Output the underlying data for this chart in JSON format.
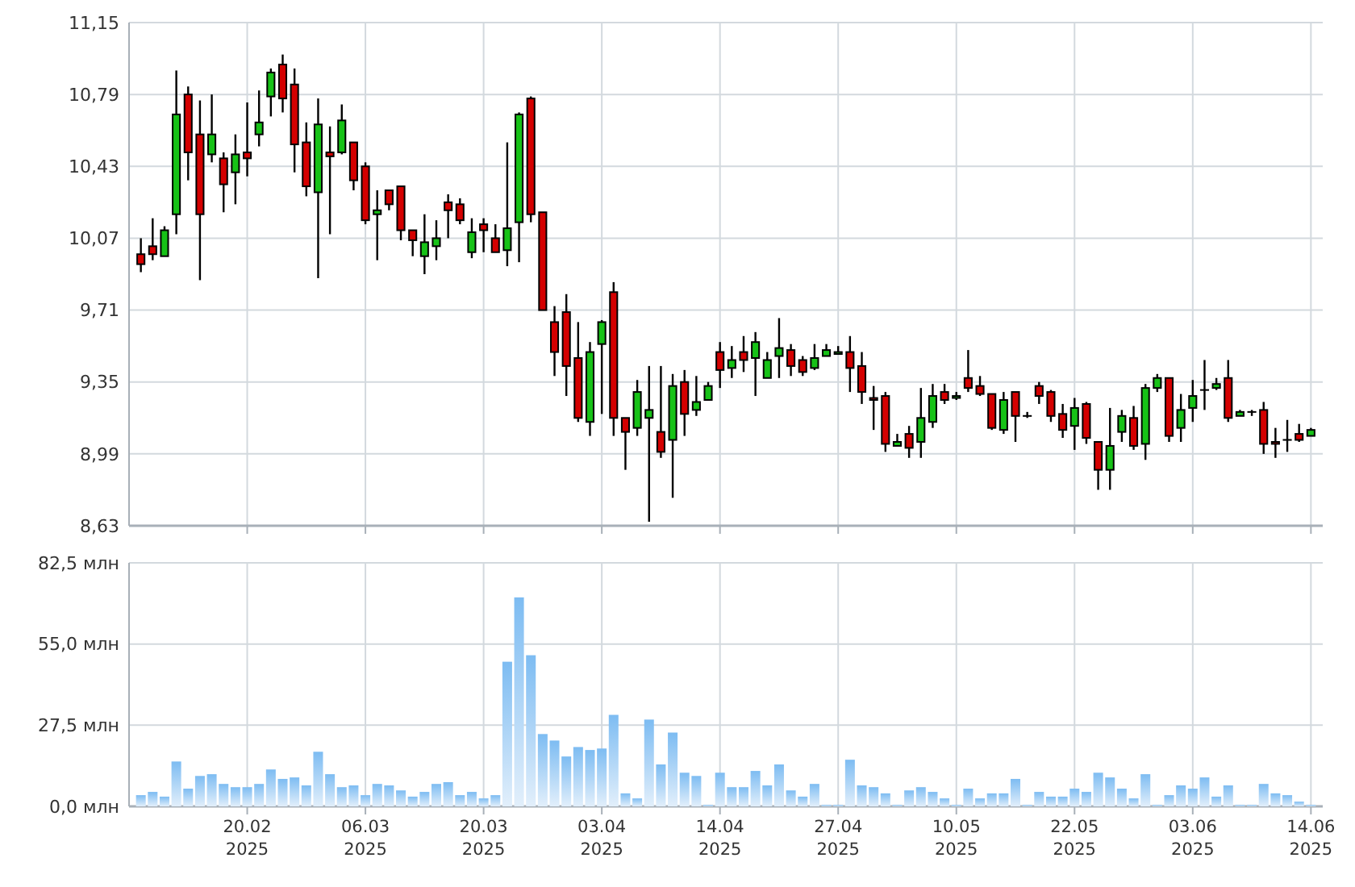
{
  "chart_data": [
    {
      "type": "candlestick",
      "categories": [
        null,
        null,
        null,
        null,
        null,
        null,
        null,
        null,
        null,
        null,
        null,
        null,
        null,
        null,
        null,
        null,
        null,
        null,
        null,
        null,
        null,
        null,
        null,
        null,
        null,
        null,
        null,
        null,
        null,
        null,
        null,
        null,
        null,
        null,
        null,
        null,
        null,
        null,
        null,
        null,
        null,
        null,
        null,
        null,
        null,
        null,
        null,
        null,
        null,
        null,
        null,
        null,
        null,
        null,
        null,
        null,
        null,
        null,
        null,
        null,
        null,
        null,
        null,
        null,
        null,
        null,
        null,
        null,
        null,
        null,
        null,
        null,
        null,
        null,
        null,
        null,
        null,
        null,
        null,
        null,
        null,
        null,
        null,
        null,
        null,
        null,
        null,
        null,
        null,
        null,
        null,
        null,
        null,
        null,
        null,
        null,
        null,
        null,
        null,
        null
      ],
      "ohlc": [
        [
          9.99,
          10.07,
          9.9,
          9.94
        ],
        [
          10.03,
          10.17,
          9.96,
          9.99
        ],
        [
          9.98,
          10.13,
          9.98,
          10.11
        ],
        [
          10.19,
          10.91,
          10.09,
          10.69
        ],
        [
          10.79,
          10.83,
          10.36,
          10.5
        ],
        [
          10.59,
          10.76,
          9.86,
          10.19
        ],
        [
          10.49,
          10.79,
          10.45,
          10.59
        ],
        [
          10.47,
          10.5,
          10.2,
          10.34
        ],
        [
          10.4,
          10.59,
          10.24,
          10.49
        ],
        [
          10.5,
          10.75,
          10.38,
          10.47
        ],
        [
          10.59,
          10.81,
          10.53,
          10.65
        ],
        [
          10.78,
          10.92,
          10.68,
          10.9
        ],
        [
          10.94,
          10.99,
          10.7,
          10.77
        ],
        [
          10.84,
          10.92,
          10.4,
          10.54
        ],
        [
          10.55,
          10.65,
          10.28,
          10.33
        ],
        [
          10.3,
          10.77,
          9.87,
          10.64
        ],
        [
          10.5,
          10.63,
          10.09,
          10.48
        ],
        [
          10.5,
          10.74,
          10.49,
          10.66
        ],
        [
          10.55,
          10.55,
          10.31,
          10.36
        ],
        [
          10.43,
          10.45,
          10.14,
          10.16
        ],
        [
          10.19,
          10.31,
          9.96,
          10.21
        ],
        [
          10.31,
          10.31,
          10.21,
          10.24
        ],
        [
          10.33,
          10.33,
          10.06,
          10.11
        ],
        [
          10.11,
          10.11,
          9.98,
          10.06
        ],
        [
          9.98,
          10.19,
          9.89,
          10.05
        ],
        [
          10.03,
          10.16,
          9.96,
          10.07
        ],
        [
          10.25,
          10.29,
          10.07,
          10.21
        ],
        [
          10.24,
          10.27,
          10.14,
          10.16
        ],
        [
          10.0,
          10.17,
          9.97,
          10.1
        ],
        [
          10.14,
          10.17,
          10.0,
          10.11
        ],
        [
          10.07,
          10.14,
          10.0,
          10.0
        ],
        [
          10.01,
          10.55,
          9.93,
          10.12
        ],
        [
          10.15,
          10.7,
          9.95,
          10.69
        ],
        [
          10.77,
          10.78,
          10.15,
          10.19
        ],
        [
          10.2,
          10.2,
          9.71,
          9.71
        ],
        [
          9.65,
          9.73,
          9.38,
          9.5
        ],
        [
          9.7,
          9.79,
          9.28,
          9.43
        ],
        [
          9.47,
          9.65,
          9.15,
          9.17
        ],
        [
          9.15,
          9.55,
          9.08,
          9.5
        ],
        [
          9.54,
          9.66,
          9.19,
          9.65
        ],
        [
          9.8,
          9.85,
          9.08,
          9.17
        ],
        [
          9.17,
          9.17,
          8.91,
          9.1
        ],
        [
          9.12,
          9.36,
          9.08,
          9.3
        ],
        [
          9.17,
          9.43,
          8.65,
          9.21
        ],
        [
          9.1,
          9.43,
          8.97,
          9.0
        ],
        [
          9.06,
          9.39,
          8.77,
          9.33
        ],
        [
          9.35,
          9.41,
          9.08,
          9.19
        ],
        [
          9.21,
          9.38,
          9.18,
          9.25
        ],
        [
          9.26,
          9.35,
          9.26,
          9.33
        ],
        [
          9.5,
          9.55,
          9.32,
          9.41
        ],
        [
          9.42,
          9.53,
          9.37,
          9.46
        ],
        [
          9.5,
          9.58,
          9.4,
          9.46
        ],
        [
          9.47,
          9.6,
          9.28,
          9.55
        ],
        [
          9.37,
          9.5,
          9.37,
          9.46
        ],
        [
          9.48,
          9.67,
          9.37,
          9.52
        ],
        [
          9.51,
          9.54,
          9.38,
          9.43
        ],
        [
          9.46,
          9.48,
          9.38,
          9.4
        ],
        [
          9.42,
          9.54,
          9.41,
          9.47
        ],
        [
          9.48,
          9.54,
          9.48,
          9.51
        ],
        [
          9.49,
          9.53,
          9.49,
          9.5
        ],
        [
          9.5,
          9.58,
          9.3,
          9.42
        ],
        [
          9.43,
          9.5,
          9.24,
          9.3
        ],
        [
          9.27,
          9.33,
          9.11,
          9.26
        ],
        [
          9.28,
          9.3,
          9.0,
          9.04
        ],
        [
          9.03,
          9.09,
          9.03,
          9.05
        ],
        [
          9.09,
          9.13,
          8.97,
          9.02
        ],
        [
          9.05,
          9.32,
          8.97,
          9.17
        ],
        [
          9.15,
          9.34,
          9.12,
          9.28
        ],
        [
          9.3,
          9.34,
          9.24,
          9.26
        ],
        [
          9.27,
          9.3,
          9.26,
          9.28
        ],
        [
          9.37,
          9.51,
          9.3,
          9.32
        ],
        [
          9.33,
          9.38,
          9.28,
          9.29
        ],
        [
          9.29,
          9.29,
          9.11,
          9.12
        ],
        [
          9.11,
          9.3,
          9.09,
          9.26
        ],
        [
          9.3,
          9.3,
          9.05,
          9.18
        ],
        [
          9.18,
          9.2,
          9.17,
          9.18
        ],
        [
          9.33,
          9.35,
          9.24,
          9.28
        ],
        [
          9.3,
          9.31,
          9.15,
          9.18
        ],
        [
          9.19,
          9.24,
          9.07,
          9.11
        ],
        [
          9.13,
          9.27,
          9.01,
          9.22
        ],
        [
          9.24,
          9.25,
          9.04,
          9.07
        ],
        [
          9.05,
          9.05,
          8.81,
          8.91
        ],
        [
          8.91,
          9.22,
          8.81,
          9.03
        ],
        [
          9.1,
          9.21,
          9.05,
          9.18
        ],
        [
          9.17,
          9.23,
          9.01,
          9.03
        ],
        [
          9.04,
          9.34,
          8.96,
          9.32
        ],
        [
          9.32,
          9.39,
          9.3,
          9.37
        ],
        [
          9.37,
          9.37,
          9.05,
          9.08
        ],
        [
          9.12,
          9.29,
          9.05,
          9.21
        ],
        [
          9.22,
          9.36,
          9.15,
          9.28
        ],
        [
          9.31,
          9.46,
          9.21,
          9.31
        ],
        [
          9.32,
          9.37,
          9.31,
          9.34
        ],
        [
          9.37,
          9.46,
          9.15,
          9.17
        ],
        [
          9.18,
          9.21,
          9.18,
          9.2
        ],
        [
          9.2,
          9.21,
          9.18,
          9.2
        ],
        [
          9.21,
          9.25,
          8.99,
          9.04
        ],
        [
          9.05,
          9.12,
          8.97,
          9.04
        ],
        [
          9.06,
          9.16,
          9.0,
          9.06
        ],
        [
          9.09,
          9.14,
          9.05,
          9.06
        ],
        [
          9.08,
          9.12,
          9.08,
          9.11
        ]
      ],
      "colors": [
        "#d40000",
        "#d40000",
        "#17c217",
        "#17c217",
        "#d40000",
        "#d40000",
        "#17c217",
        "#d40000",
        "#17c217",
        "#d40000",
        "#17c217",
        "#17c217",
        "#d40000",
        "#d40000",
        "#d40000",
        "#17c217",
        "#d40000",
        "#17c217",
        "#d40000",
        "#d40000",
        "#17c217",
        "#d40000",
        "#d40000",
        "#d40000",
        "#17c217",
        "#17c217",
        "#d40000",
        "#d40000",
        "#17c217",
        "#d40000",
        "#d40000",
        "#17c217",
        "#17c217",
        "#d40000",
        "#d40000",
        "#d40000",
        "#d40000",
        "#d40000",
        "#17c217",
        "#17c217",
        "#d40000",
        "#d40000",
        "#17c217",
        "#17c217",
        "#d40000",
        "#17c217",
        "#d40000",
        "#17c217",
        "#17c217",
        "#d40000",
        "#17c217",
        "#d40000",
        "#17c217",
        "#17c217",
        "#17c217",
        "#d40000",
        "#d40000",
        "#17c217",
        "#17c217",
        "#17c217",
        "#d40000",
        "#d40000",
        "#d40000",
        "#d40000",
        "#17c217",
        "#d40000",
        "#17c217",
        "#17c217",
        "#d40000",
        "#17c217",
        "#d40000",
        "#d40000",
        "#d40000",
        "#17c217",
        "#d40000",
        "#d40000",
        "#d40000",
        "#d40000",
        "#d40000",
        "#17c217",
        "#d40000",
        "#d40000",
        "#17c217",
        "#17c217",
        "#d40000",
        "#17c217",
        "#17c217",
        "#d40000",
        "#17c217",
        "#17c217",
        "#d40000",
        "#17c217",
        "#d40000",
        "#17c217",
        "#d40000",
        "#d40000",
        "#d40000",
        "#d40000",
        "#d40000",
        "#17c217"
      ],
      "ylim": [
        8.63,
        11.15
      ],
      "yticks": [
        {
          "value": 8.63,
          "label": "8,63"
        },
        {
          "value": 8.99,
          "label": "8,99"
        },
        {
          "value": 9.35,
          "label": "9,35"
        },
        {
          "value": 9.71,
          "label": "9,71"
        },
        {
          "value": 10.07,
          "label": "10,07"
        },
        {
          "value": 10.43,
          "label": "10,43"
        },
        {
          "value": 10.79,
          "label": "10,79"
        },
        {
          "value": 11.15,
          "label": "11,15"
        }
      ],
      "grid": true,
      "tick_labels": "y"
    },
    {
      "type": "bar",
      "categories": [
        null,
        null,
        null,
        null,
        null,
        null,
        null,
        null,
        null,
        "20.02\n2025",
        null,
        null,
        null,
        null,
        null,
        null,
        null,
        null,
        null,
        "06.03\n2025",
        null,
        null,
        null,
        null,
        null,
        null,
        null,
        null,
        null,
        "20.03\n2025",
        null,
        null,
        null,
        null,
        null,
        null,
        null,
        null,
        null,
        "03.04\n2025",
        null,
        null,
        null,
        null,
        null,
        null,
        null,
        null,
        null,
        "14.04\n2025",
        null,
        null,
        null,
        null,
        null,
        null,
        null,
        null,
        null,
        "27.04\n2025",
        null,
        null,
        null,
        null,
        null,
        null,
        null,
        null,
        null,
        "10.05\n2025",
        null,
        null,
        null,
        null,
        null,
        null,
        null,
        null,
        null,
        "22.05\n2025",
        null,
        null,
        null,
        null,
        null,
        null,
        null,
        null,
        null,
        "03.06\n2025",
        null,
        null,
        null,
        null,
        null,
        null,
        null,
        null,
        null,
        "14.06\n2025"
      ],
      "values": [
        3.8,
        4.9,
        3.3,
        15.2,
        6.0,
        10.3,
        10.9,
        7.6,
        6.5,
        6.5,
        7.6,
        12.5,
        9.3,
        9.8,
        7.1,
        18.5,
        10.9,
        6.5,
        7.1,
        3.8,
        7.6,
        7.1,
        5.4,
        3.3,
        4.9,
        7.6,
        8.2,
        3.8,
        4.9,
        2.7,
        3.8,
        49.0,
        70.8,
        51.2,
        24.5,
        22.3,
        16.9,
        20.1,
        19.1,
        19.6,
        31.0,
        4.4,
        2.7,
        29.4,
        14.2,
        25.0,
        11.4,
        10.3,
        0.5,
        11.4,
        6.5,
        6.5,
        12.0,
        7.1,
        14.2,
        5.4,
        3.3,
        7.6,
        0.5,
        0.5,
        15.8,
        7.1,
        6.5,
        4.4,
        0.5,
        5.4,
        6.5,
        4.9,
        2.7,
        0.5,
        6.0,
        2.7,
        4.4,
        4.4,
        9.3,
        0.5,
        4.9,
        3.3,
        3.3,
        6.0,
        4.9,
        11.4,
        9.8,
        6.0,
        2.7,
        10.9,
        0.5,
        3.8,
        7.1,
        6.0,
        9.8,
        3.3,
        7.1,
        0.5,
        0.5,
        7.6,
        4.4,
        3.8,
        1.6,
        0.5
      ],
      "color": "#7dbcf2",
      "ylim": [
        0,
        82.5
      ],
      "yticks": [
        {
          "value": 0,
          "label": "0,0 млн"
        },
        {
          "value": 27.5,
          "label": "27,5 млн"
        },
        {
          "value": 55,
          "label": "55,0 млн"
        },
        {
          "value": 82.5,
          "label": "82,5 млн"
        }
      ],
      "grid": true
    }
  ]
}
